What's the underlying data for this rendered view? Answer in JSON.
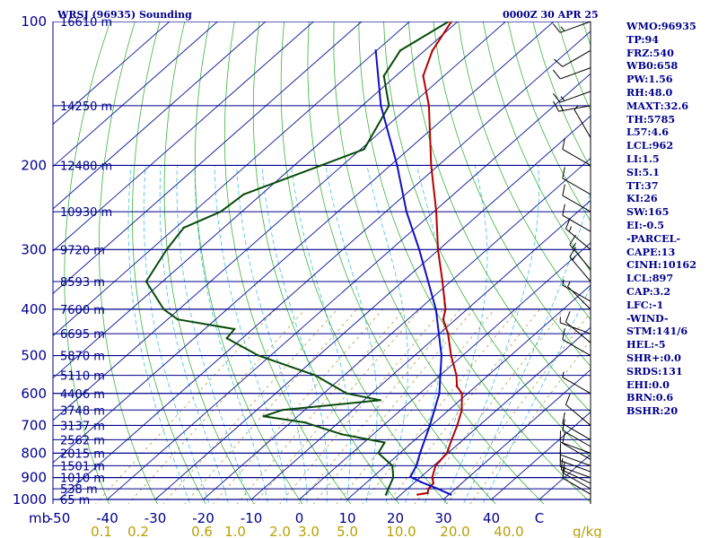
{
  "header": {
    "station": "WRSJ (96935) Sounding",
    "valid_time": "0000Z 30 APR 25"
  },
  "indices": [
    "WMO:96935",
    "TP:94",
    "FRZ:540",
    "WB0:658",
    "PW:1.56",
    "RH:48.0",
    "MAXT:32.6",
    "TH:5785",
    "L57:4.6",
    "LCL:962",
    "LI:1.5",
    "SI:5.1",
    "TT:37",
    "KI:26",
    "SW:165",
    "EI:-0.5",
    "-PARCEL-",
    "CAPE:13",
    "CINH:10162",
    "LCL:897",
    "CAP:3.2",
    "LFC:-1",
    "-WIND-",
    "STM:141/6",
    "HEL:-5",
    "SHR+:0.0",
    "SRDS:131",
    "EHI:0.0",
    "BRN:0.6",
    "BSHR:20"
  ],
  "axis": {
    "pressure_unit": "mb",
    "mixing_ratio_unit": "g/kg"
  },
  "colors": {
    "isobar": "#00008b",
    "isotherm": "#1e2a9e",
    "dry_adiabat": "#3cb43c",
    "moist_adiabat": "#40c0e8",
    "mixing_ratio": "#b8a040",
    "temperature": "#b40000",
    "dewpoint": "#0a4a0a",
    "parcel": "#1010c0",
    "wind_barb": "#000000"
  },
  "chart_data": {
    "type": "line",
    "title": "WRSJ (96935) Sounding",
    "subtitle": "0000Z 30 APR 25",
    "y_axis": {
      "quantity": "pressure",
      "unit": "mb",
      "scale": "log",
      "range": [
        1000,
        100
      ],
      "ticks": [
        100,
        200,
        300,
        400,
        500,
        600,
        700,
        800,
        900,
        1000
      ]
    },
    "x_axis": {
      "quantity": "temperature",
      "unit": "C",
      "range": [
        -50,
        50
      ],
      "ticks": [
        "-50",
        "-40",
        "-30",
        "-20",
        "-10",
        "0",
        "10",
        "20",
        "30",
        "40",
        "C"
      ]
    },
    "mixing_ratio_labels": [
      "0.1",
      "0.2",
      "0.6",
      "1.0",
      "2.0",
      "3.0",
      "5.0",
      "10.0",
      "20.0",
      "40.0"
    ],
    "height_labels": [
      {
        "p": 100,
        "label": "16610 m"
      },
      {
        "p": 150,
        "label": "14250 m"
      },
      {
        "p": 200,
        "label": "12480 m"
      },
      {
        "p": 250,
        "label": "10930 m"
      },
      {
        "p": 300,
        "label": "9720 m"
      },
      {
        "p": 350,
        "label": "8593 m"
      },
      {
        "p": 400,
        "label": "7600 m"
      },
      {
        "p": 450,
        "label": "6695 m"
      },
      {
        "p": 500,
        "label": "5870 m"
      },
      {
        "p": 550,
        "label": "5110 m"
      },
      {
        "p": 600,
        "label": "4406 m"
      },
      {
        "p": 650,
        "label": "3748 m"
      },
      {
        "p": 700,
        "label": "3137 m"
      },
      {
        "p": 750,
        "label": "2562 m"
      },
      {
        "p": 800,
        "label": "2015 m"
      },
      {
        "p": 850,
        "label": "1501 m"
      },
      {
        "p": 900,
        "label": "1010 m"
      },
      {
        "p": 950,
        "label": "538 m"
      },
      {
        "p": 1000,
        "label": "65 m"
      }
    ],
    "series": [
      {
        "name": "Temperature",
        "points": [
          {
            "p": 977,
            "t": 23.5
          },
          {
            "p": 970,
            "t": 25.2
          },
          {
            "p": 950,
            "t": 24.4
          },
          {
            "p": 925,
            "t": 24.1
          },
          {
            "p": 900,
            "t": 22.5
          },
          {
            "p": 850,
            "t": 20.4
          },
          {
            "p": 800,
            "t": 19.8
          },
          {
            "p": 750,
            "t": 17.6
          },
          {
            "p": 700,
            "t": 15.4
          },
          {
            "p": 650,
            "t": 12.7
          },
          {
            "p": 600,
            "t": 8.8
          },
          {
            "p": 580,
            "t": 6.1
          },
          {
            "p": 550,
            "t": 3.4
          },
          {
            "p": 500,
            "t": -2.4
          },
          {
            "p": 450,
            "t": -8.2
          },
          {
            "p": 420,
            "t": -12.6
          },
          {
            "p": 400,
            "t": -14.5
          },
          {
            "p": 350,
            "t": -21.7
          },
          {
            "p": 300,
            "t": -30.2
          },
          {
            "p": 250,
            "t": -39.5
          },
          {
            "p": 200,
            "t": -51.5
          },
          {
            "p": 150,
            "t": -66.1
          },
          {
            "p": 130,
            "t": -74.3
          },
          {
            "p": 115,
            "t": -78.4
          },
          {
            "p": 100,
            "t": -81.3
          }
        ]
      },
      {
        "name": "Dewpoint",
        "points": [
          {
            "p": 977,
            "t": 16.9
          },
          {
            "p": 950,
            "t": 16.0
          },
          {
            "p": 900,
            "t": 14.4
          },
          {
            "p": 850,
            "t": 11.4
          },
          {
            "p": 800,
            "t": 5.5
          },
          {
            "p": 760,
            "t": 4.3
          },
          {
            "p": 730,
            "t": -6.7
          },
          {
            "p": 690,
            "t": -17.1
          },
          {
            "p": 670,
            "t": -27.1
          },
          {
            "p": 650,
            "t": -24.7
          },
          {
            "p": 620,
            "t": -6.6
          },
          {
            "p": 600,
            "t": -15.2
          },
          {
            "p": 550,
            "t": -26.0
          },
          {
            "p": 500,
            "t": -42.5
          },
          {
            "p": 460,
            "t": -53.2
          },
          {
            "p": 440,
            "t": -53.8
          },
          {
            "p": 420,
            "t": -67.9
          },
          {
            "p": 400,
            "t": -73.2
          },
          {
            "p": 350,
            "t": -83.4
          },
          {
            "p": 300,
            "t": -86.7
          },
          {
            "p": 270,
            "t": -88.3
          },
          {
            "p": 250,
            "t": -84.4
          },
          {
            "p": 230,
            "t": -83.7
          },
          {
            "p": 200,
            "t": -74.4
          },
          {
            "p": 185,
            "t": -69.3
          },
          {
            "p": 150,
            "t": -74.4
          },
          {
            "p": 130,
            "t": -82.5
          },
          {
            "p": 115,
            "t": -85.1
          },
          {
            "p": 100,
            "t": -81.9
          }
        ]
      },
      {
        "name": "Parcel",
        "points": [
          {
            "p": 977,
            "t": 30.4
          },
          {
            "p": 950,
            "t": 26.3
          },
          {
            "p": 920,
            "t": 21.3
          },
          {
            "p": 897,
            "t": 17.8
          },
          {
            "p": 850,
            "t": 16.4
          },
          {
            "p": 800,
            "t": 14.2
          },
          {
            "p": 700,
            "t": 9.7
          },
          {
            "p": 600,
            "t": 4.1
          },
          {
            "p": 500,
            "t": -4.4
          },
          {
            "p": 400,
            "t": -16.5
          },
          {
            "p": 300,
            "t": -34.1
          },
          {
            "p": 250,
            "t": -45.7
          },
          {
            "p": 200,
            "t": -58.6
          },
          {
            "p": 150,
            "t": -76.1
          },
          {
            "p": 115,
            "t": -90.2
          }
        ]
      }
    ],
    "wind_barbs": [
      {
        "p": 975,
        "dir": 300,
        "kt": 10
      },
      {
        "p": 950,
        "dir": 300,
        "kt": 10
      },
      {
        "p": 925,
        "dir": 295,
        "kt": 10
      },
      {
        "p": 900,
        "dir": 290,
        "kt": 10
      },
      {
        "p": 875,
        "dir": 290,
        "kt": 10
      },
      {
        "p": 850,
        "dir": 290,
        "kt": 10
      },
      {
        "p": 825,
        "dir": 300,
        "kt": 10
      },
      {
        "p": 800,
        "dir": 290,
        "kt": 10
      },
      {
        "p": 775,
        "dir": 300,
        "kt": 10
      },
      {
        "p": 750,
        "dir": 300,
        "kt": 10
      },
      {
        "p": 700,
        "dir": 310,
        "kt": 10
      },
      {
        "p": 600,
        "dir": 300,
        "kt": 5
      },
      {
        "p": 500,
        "dir": 300,
        "kt": 10
      },
      {
        "p": 470,
        "dir": 310,
        "kt": 10
      },
      {
        "p": 450,
        "dir": 290,
        "kt": 5
      },
      {
        "p": 400,
        "dir": 315,
        "kt": 5
      },
      {
        "p": 385,
        "dir": 300,
        "kt": 5
      },
      {
        "p": 350,
        "dir": 320,
        "kt": 15
      },
      {
        "p": 330,
        "dir": 320,
        "kt": 15
      },
      {
        "p": 300,
        "dir": 310,
        "kt": 15
      },
      {
        "p": 275,
        "dir": 300,
        "kt": 10
      },
      {
        "p": 250,
        "dir": 300,
        "kt": 10
      },
      {
        "p": 230,
        "dir": 300,
        "kt": 10
      },
      {
        "p": 200,
        "dir": 300,
        "kt": 10
      },
      {
        "p": 175,
        "dir": 330,
        "kt": 5
      },
      {
        "p": 150,
        "dir": 260,
        "kt": 15
      },
      {
        "p": 140,
        "dir": 250,
        "kt": 15
      },
      {
        "p": 125,
        "dir": 250,
        "kt": 10
      },
      {
        "p": 115,
        "dir": 240,
        "kt": 10
      },
      {
        "p": 100,
        "dir": 250,
        "kt": 15
      }
    ]
  }
}
